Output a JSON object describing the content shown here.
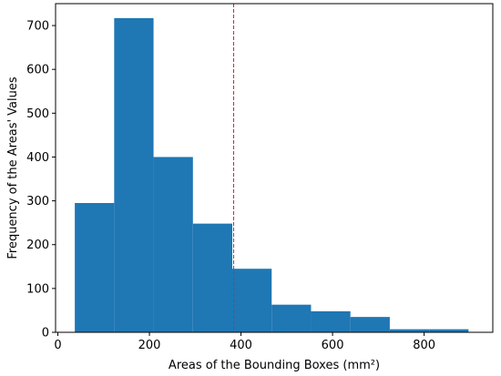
{
  "chart_data": {
    "type": "bar",
    "subtype": "histogram",
    "title": "",
    "xlabel": "Areas of the Bounding Boxes (mm²)",
    "ylabel": "Frequency of the Areas' Values",
    "xlim": [
      -5,
      950
    ],
    "ylim": [
      0,
      750
    ],
    "xticks": [
      0,
      200,
      400,
      600,
      800
    ],
    "yticks": [
      0,
      100,
      200,
      300,
      400,
      500,
      600,
      700
    ],
    "bin_edges": [
      37,
      123,
      209,
      295,
      381,
      467,
      553,
      639,
      725,
      811,
      897
    ],
    "counts": [
      295,
      717,
      400,
      248,
      145,
      63,
      48,
      35,
      7,
      7
    ],
    "bar_color": "#1f77b4",
    "mean_line": {
      "x": 384,
      "color": "#d62728",
      "style": "dashed"
    },
    "grid": false,
    "legend": "none"
  }
}
